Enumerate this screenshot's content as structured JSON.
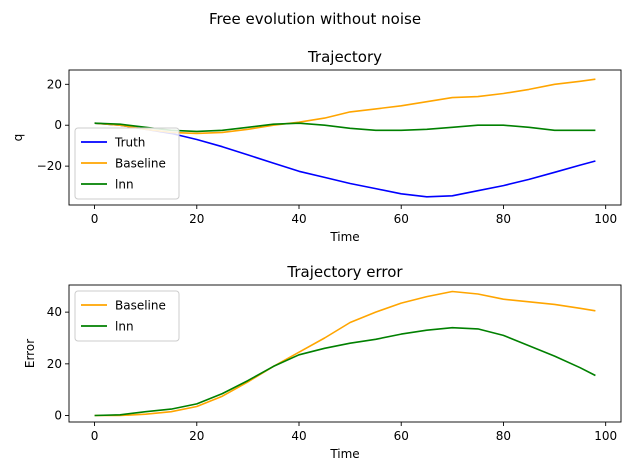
{
  "suptitle": "Free evolution without noise",
  "chart_data": [
    {
      "type": "line",
      "title": "Trajectory",
      "xlabel": "Time",
      "ylabel": "q",
      "xlim": [
        -5,
        103
      ],
      "ylim": [
        -39,
        27
      ],
      "xticks": [
        0,
        20,
        40,
        60,
        80,
        100
      ],
      "yticks": [
        -20,
        0,
        20
      ],
      "legend": "lower-left",
      "grid": false,
      "x": [
        0,
        5,
        10,
        15,
        20,
        25,
        30,
        35,
        40,
        45,
        50,
        55,
        60,
        65,
        70,
        75,
        80,
        85,
        90,
        95,
        98
      ],
      "series": [
        {
          "name": "Truth",
          "color": "#0000ff",
          "values": [
            1,
            0,
            -2,
            -4,
            -7,
            -10.5,
            -14.5,
            -18.5,
            -22.5,
            -25.5,
            -28.5,
            -31,
            -33.5,
            -35,
            -34.5,
            -32,
            -29.5,
            -26.5,
            -23,
            -19.5,
            -17.5
          ]
        },
        {
          "name": "Baseline",
          "color": "#ffa500",
          "values": [
            1,
            0,
            -2,
            -3.5,
            -4,
            -3.5,
            -2,
            0,
            1.5,
            3.5,
            6.5,
            8,
            9.5,
            11.5,
            13.5,
            14,
            15.5,
            17.5,
            20,
            21.5,
            22.5
          ]
        },
        {
          "name": "lnn",
          "color": "#008000",
          "values": [
            1,
            0.5,
            -1,
            -2.5,
            -3,
            -2.5,
            -1,
            0.5,
            1,
            0,
            -1.5,
            -2.5,
            -2.5,
            -2,
            -1,
            0,
            0,
            -1,
            -2.5,
            -2.5,
            -2.5
          ]
        }
      ]
    },
    {
      "type": "line",
      "title": "Trajectory error",
      "xlabel": "Time",
      "ylabel": "Error",
      "xlim": [
        -5,
        103
      ],
      "ylim": [
        -2.5,
        50.5
      ],
      "xticks": [
        0,
        20,
        40,
        60,
        80,
        100
      ],
      "yticks": [
        0,
        20,
        40
      ],
      "legend": "top-left",
      "grid": false,
      "x": [
        0,
        5,
        10,
        15,
        20,
        25,
        30,
        35,
        40,
        45,
        50,
        55,
        60,
        65,
        70,
        75,
        80,
        85,
        90,
        95,
        98
      ],
      "series": [
        {
          "name": "Baseline",
          "color": "#ffa500",
          "values": [
            0,
            0,
            0.5,
            1.5,
            3.5,
            7.5,
            13,
            19,
            24.5,
            30,
            36,
            40,
            43.5,
            46,
            48,
            47,
            45,
            44,
            43,
            41.5,
            40.5
          ]
        },
        {
          "name": "lnn",
          "color": "#008000",
          "values": [
            0,
            0.3,
            1.5,
            2.5,
            4.5,
            8.5,
            13.5,
            19,
            23.5,
            26,
            28,
            29.5,
            31.5,
            33,
            34,
            33.5,
            31,
            27,
            23,
            18.5,
            15.5
          ]
        }
      ]
    }
  ]
}
